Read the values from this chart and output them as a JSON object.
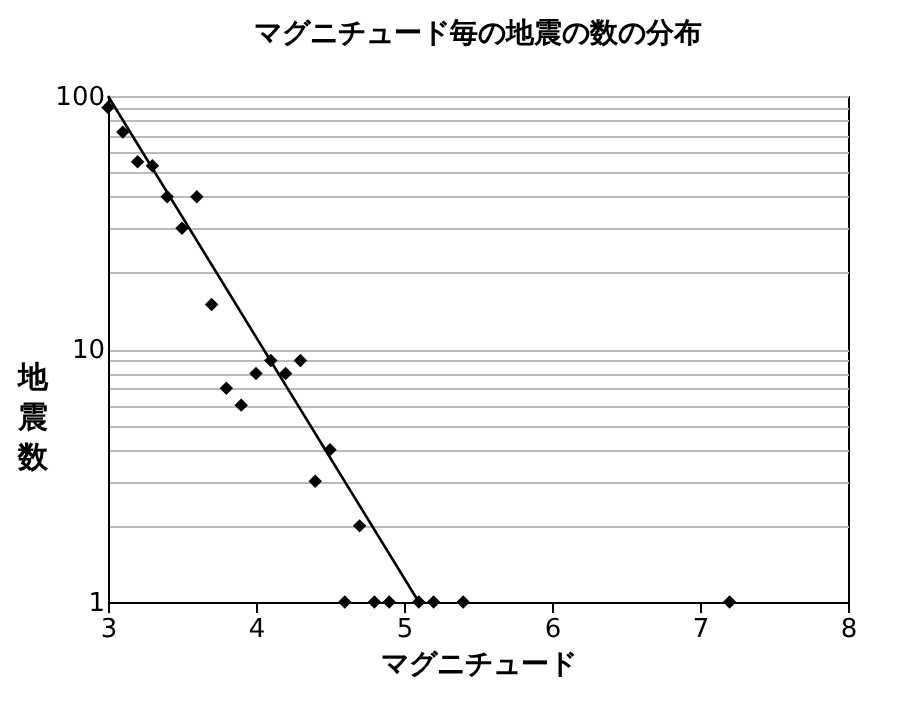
{
  "chart_data": {
    "type": "scatter",
    "title": "マグニチュード毎の地震の数の分布",
    "xlabel": "マグニチュード",
    "ylabel": "地震数",
    "log": "y",
    "grid": "y",
    "xlim": [
      3,
      8
    ],
    "xticks": [
      3,
      4,
      5,
      6,
      7,
      8
    ],
    "ylim": [
      1,
      100
    ],
    "yticks": [
      1,
      {
        "value": 2,
        "label": null
      },
      {
        "value": 3,
        "label": null
      },
      {
        "value": 4,
        "label": null
      },
      {
        "value": 5,
        "label": null
      },
      {
        "value": 6,
        "label": null
      },
      {
        "value": 7,
        "label": null
      },
      {
        "value": 8,
        "label": null
      },
      {
        "value": 9,
        "label": null
      },
      10,
      {
        "value": 20,
        "label": null
      },
      {
        "value": 30,
        "label": null
      },
      {
        "value": 40,
        "label": null
      },
      {
        "value": 50,
        "label": null
      },
      {
        "value": 60,
        "label": null
      },
      {
        "value": 70,
        "label": null
      },
      {
        "value": 80,
        "label": null
      },
      {
        "value": 90,
        "label": null
      },
      100
    ],
    "series": [
      {
        "marker": "diamond",
        "color": "#000000",
        "x": [
          3.0,
          3.1,
          3.2,
          3.3,
          3.4,
          3.5,
          3.6,
          3.7,
          3.8,
          3.9,
          4.0,
          4.1,
          4.2,
          4.3,
          4.4,
          4.5,
          4.6,
          4.7,
          4.8,
          4.9,
          5.1,
          5.2,
          5.4,
          7.2
        ],
        "values": [
          90,
          72,
          55,
          53,
          40,
          30,
          40,
          15,
          7,
          6,
          8,
          9,
          8,
          9,
          3,
          4,
          1,
          2,
          1,
          1,
          1,
          1,
          1,
          1
        ]
      },
      {
        "type": "line",
        "color": "#000000",
        "x": [
          3.0,
          5.1
        ],
        "values": [
          100,
          1
        ]
      }
    ]
  }
}
